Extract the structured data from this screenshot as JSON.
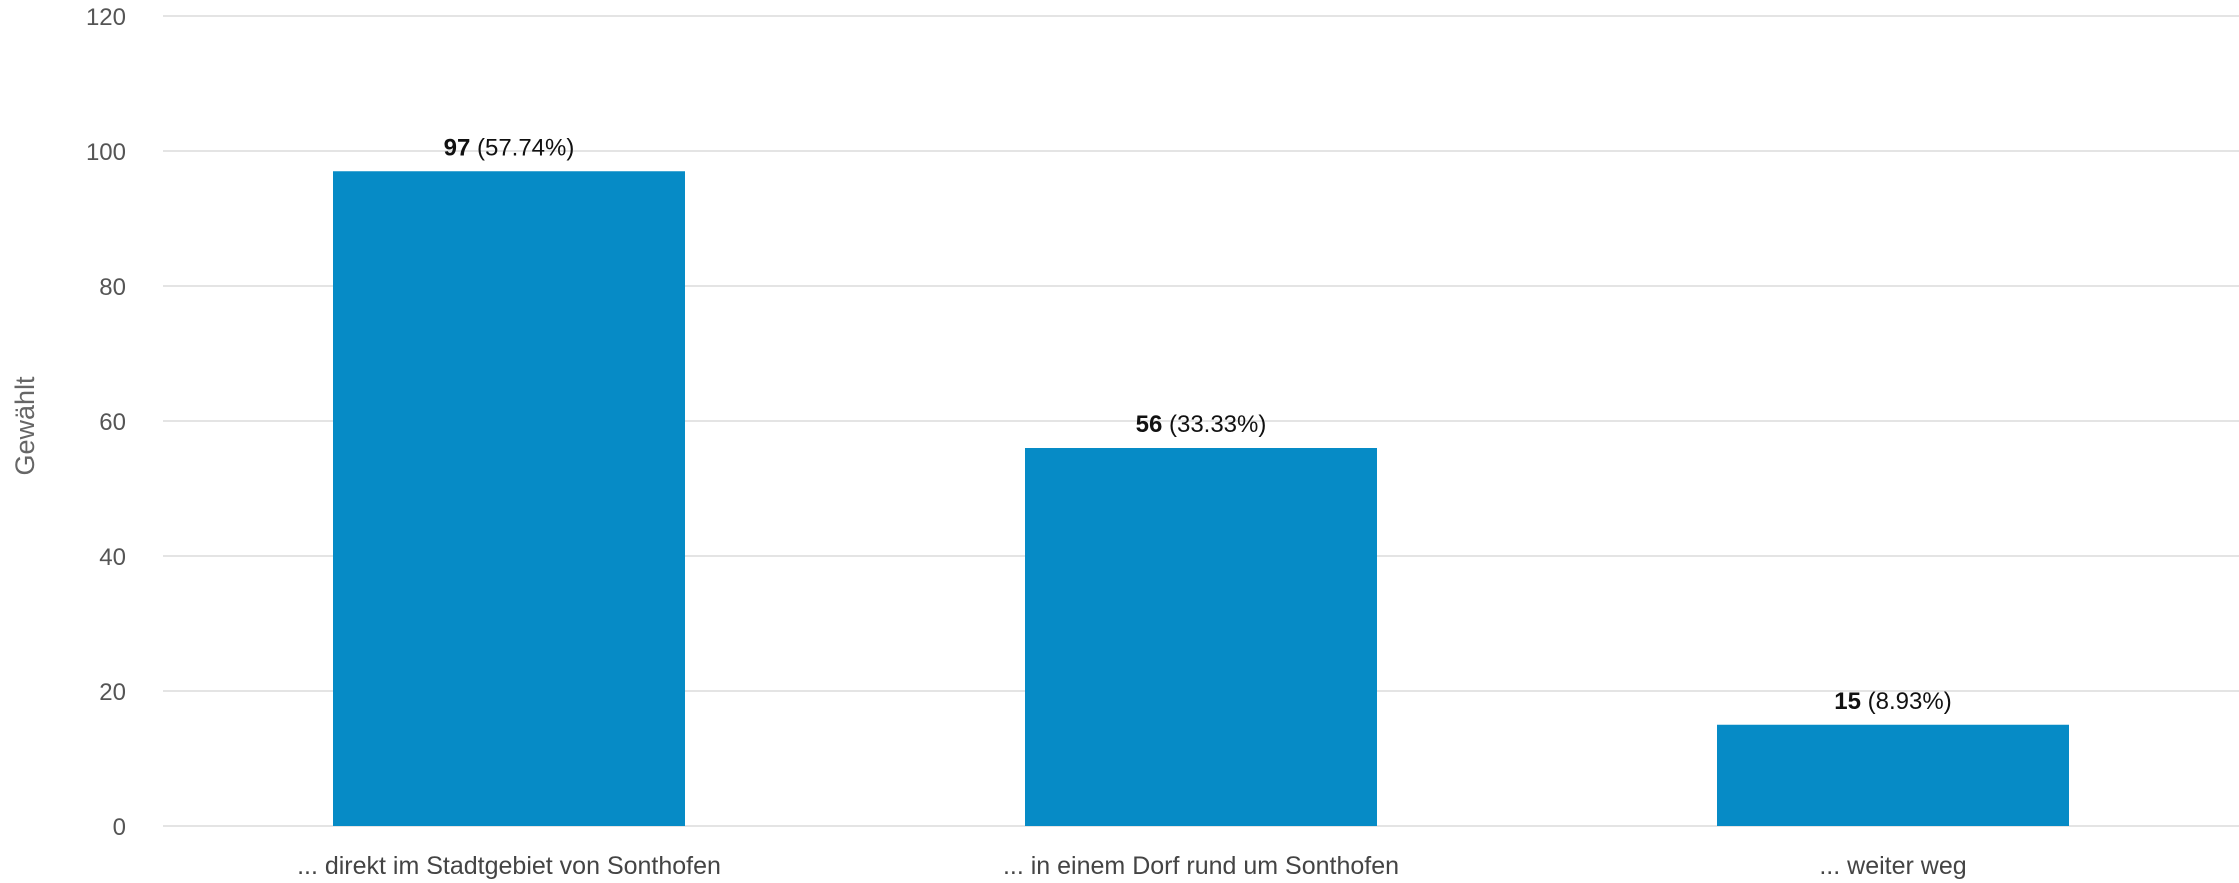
{
  "chart_data": {
    "type": "bar",
    "ylabel": "Gewählt",
    "ylim": [
      0,
      120
    ],
    "yticks": [
      0,
      20,
      40,
      60,
      80,
      100,
      120
    ],
    "grid": true,
    "categories": [
      "... direkt im Stadtgebiet von Sonthofen",
      "... in einem Dorf rund um Sonthofen",
      "... weiter weg"
    ],
    "values": [
      97,
      56,
      15
    ],
    "percent_labels": [
      "(57.74%)",
      "(33.33%)",
      "(8.93%)"
    ],
    "bar_color": "#068bc6"
  }
}
